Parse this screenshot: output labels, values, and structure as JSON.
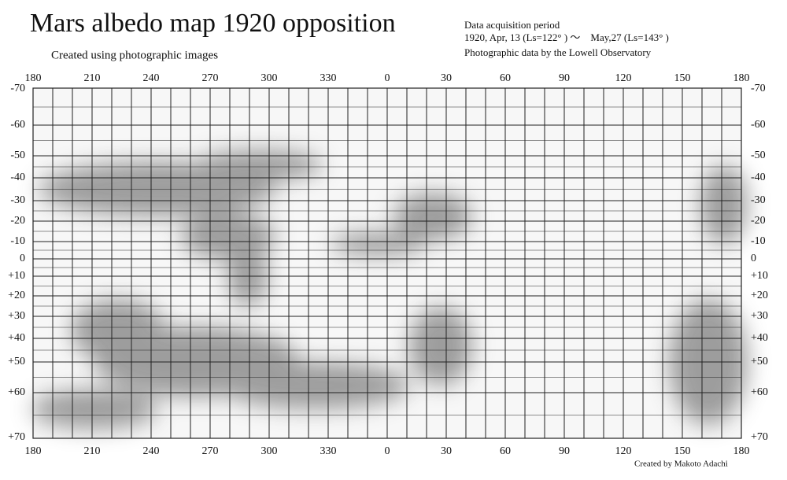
{
  "header": {
    "title": "Mars albedo map 1920 opposition",
    "subtitle": "Created using photographic images",
    "info": [
      "Data acquisition period",
      "1920, Apr, 13 (Ls=122° ) ～　May,27 (Ls=143° )",
      "Photographic data by the Lowell Observatory"
    ]
  },
  "map": {
    "longitude_labels": [
      "180",
      "210",
      "240",
      "270",
      "300",
      "330",
      "0",
      "30",
      "60",
      "90",
      "120",
      "150",
      "180"
    ],
    "latitude_labels": [
      "-70",
      "-60",
      "-50",
      "-40",
      "-30",
      "-20",
      "-10",
      "0",
      "+10",
      "+20",
      "+30",
      "+40",
      "+50",
      "+60",
      "+70"
    ]
  },
  "footer": {
    "credit": "Created by Makoto Adachi"
  }
}
